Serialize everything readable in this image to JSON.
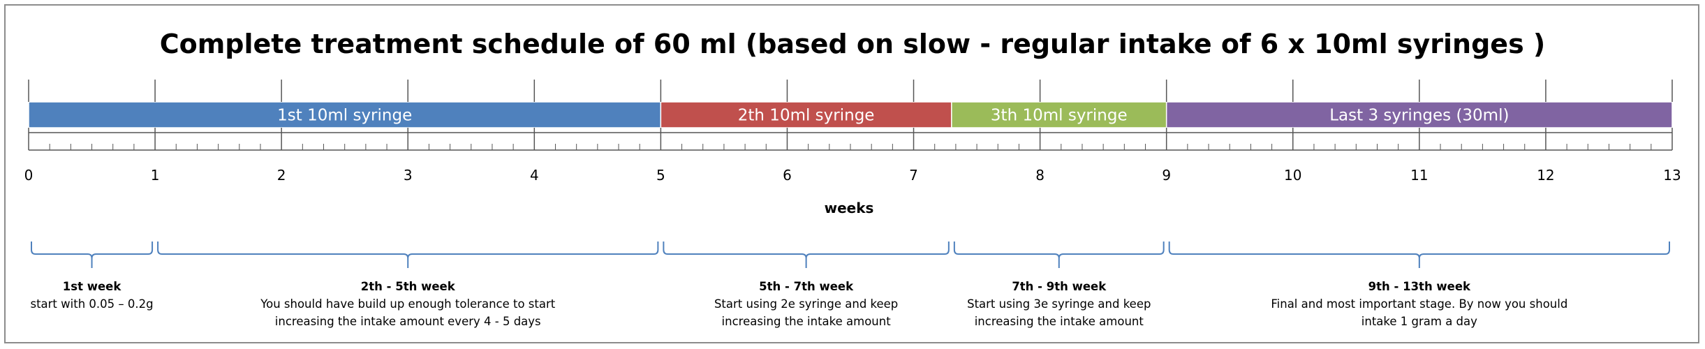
{
  "title": "Complete treatment schedule of 60 ml (based on slow - regular intake of 6 x 10ml syringes )",
  "colors": {
    "axis": "#555555",
    "brace": "#4f81bd",
    "text": "#000000"
  },
  "timeline": {
    "unit_label": "weeks",
    "x_min": 0,
    "x_max": 13,
    "major_ticks": [
      0,
      1,
      2,
      3,
      4,
      5,
      6,
      7,
      8,
      9,
      10,
      11,
      12,
      13
    ],
    "minor_per_major": 6
  },
  "segments": [
    {
      "label": "1st 10ml syringe",
      "start": 0,
      "end": 5,
      "color": "#4f81bd"
    },
    {
      "label": "2th 10ml syringe",
      "start": 5,
      "end": 7.3,
      "color": "#c0504d"
    },
    {
      "label": "3th 10ml syringe",
      "start": 7.3,
      "end": 9,
      "color": "#9bbb59"
    },
    {
      "label": "Last 3 syringes (30ml)",
      "start": 9,
      "end": 13,
      "color": "#8064a2"
    }
  ],
  "phases": [
    {
      "title": "1st week",
      "start": 0,
      "end": 1,
      "lines": [
        "start with 0.05 – 0.2g"
      ]
    },
    {
      "title": "2th - 5th week",
      "start": 1,
      "end": 5,
      "lines": [
        "You should have build up enough tolerance to start",
        "increasing the intake amount every 4 - 5 days"
      ]
    },
    {
      "title": "5th - 7th week",
      "start": 5,
      "end": 7.3,
      "lines": [
        "Start using 2e syringe and keep",
        "increasing the intake amount"
      ]
    },
    {
      "title": "7th - 9th week",
      "start": 7.3,
      "end": 9,
      "lines": [
        "Start using 3e syringe and keep",
        "increasing the intake amount"
      ]
    },
    {
      "title": "9th - 13th week",
      "start": 9,
      "end": 13,
      "lines": [
        "Final and most important stage. By now you should",
        "intake 1 gram a day"
      ]
    }
  ]
}
